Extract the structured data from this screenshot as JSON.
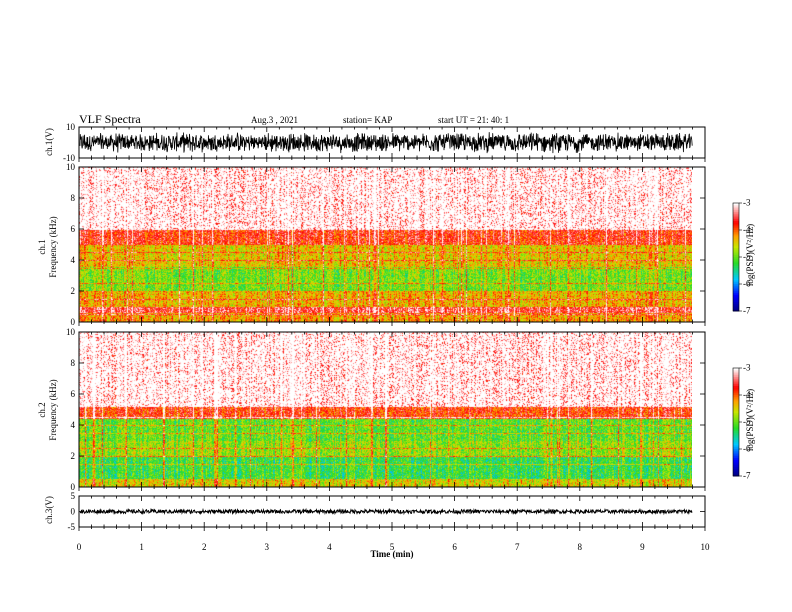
{
  "header": {
    "title": "VLF Spectra",
    "date": "Aug.3 , 2021",
    "station": "station= KAP",
    "start": "start UT = 21: 40: 1"
  },
  "chart_data": [
    {
      "type": "line",
      "panel": "ch1-waveform",
      "ylabel": "ch.1(V)",
      "ylim": [
        -10,
        10
      ],
      "yticks": [
        10,
        -10
      ],
      "xlim": [
        0,
        10
      ],
      "color": "#000000",
      "description_values": {
        "center": 0,
        "amplitude": 7
      }
    },
    {
      "type": "heatmap",
      "panel": "ch1-spectrogram",
      "ylabel": "ch.1\nFrequency (kHz)",
      "ylabel_lines": [
        "ch.1",
        "Frequency (kHz)"
      ],
      "ylim": [
        0,
        10
      ],
      "yticks": [
        0,
        2,
        4,
        6,
        8,
        10
      ],
      "xlim": [
        0,
        10
      ],
      "data_end_min": 9.8,
      "bands": [
        {
          "from": 0,
          "to": 0.6,
          "level": -4.2
        },
        {
          "from": 0.6,
          "to": 1.0,
          "level": -3.5
        },
        {
          "from": 1.0,
          "to": 2.0,
          "level": -4.3
        },
        {
          "from": 2.0,
          "to": 3.6,
          "level": -4.9
        },
        {
          "from": 3.6,
          "to": 5.0,
          "level": -4.4
        },
        {
          "from": 5.0,
          "to": 6.0,
          "level": -3.7
        },
        {
          "from": 6.0,
          "to": 10.0,
          "level": -3.2
        }
      ],
      "colorbar": {
        "label": "log(PSD)(V²/Hz)",
        "range": [
          -7,
          -3
        ],
        "ticks": [
          -3,
          -4,
          -5,
          -6,
          -7
        ]
      }
    },
    {
      "type": "heatmap",
      "panel": "ch2-spectrogram",
      "ylabel": "ch.2\nFrequency (kHz)",
      "ylabel_lines": [
        "ch.2",
        "Frequency (kHz)"
      ],
      "ylim": [
        0,
        10
      ],
      "yticks": [
        0,
        2,
        4,
        6,
        8,
        10
      ],
      "xlim": [
        0,
        10
      ],
      "data_end_min": 9.8,
      "bands": [
        {
          "from": 0,
          "to": 0.5,
          "level": -4.5
        },
        {
          "from": 0.5,
          "to": 2.0,
          "level": -5.2
        },
        {
          "from": 2.0,
          "to": 3.0,
          "level": -4.8
        },
        {
          "from": 3.0,
          "to": 4.4,
          "level": -5.0
        },
        {
          "from": 4.4,
          "to": 5.2,
          "level": -3.8
        },
        {
          "from": 5.2,
          "to": 10.0,
          "level": -3.2
        }
      ],
      "colorbar": {
        "label": "log(PSD)(V²/Hz)",
        "range": [
          -7,
          -3
        ],
        "ticks": [
          -3,
          -4,
          -5,
          -6,
          -7
        ]
      }
    },
    {
      "type": "line",
      "panel": "ch3-waveform",
      "ylabel": "ch.3(V)",
      "ylim": [
        -5,
        5
      ],
      "yticks": [
        5,
        0,
        -5
      ],
      "xlim": [
        0,
        10
      ],
      "xlabel": "Time (min)",
      "xticks": [
        0,
        1,
        2,
        3,
        4,
        5,
        6,
        7,
        8,
        9,
        10
      ],
      "color": "#000000",
      "description_values": {
        "center": 0,
        "amplitude": 0.6
      }
    }
  ]
}
